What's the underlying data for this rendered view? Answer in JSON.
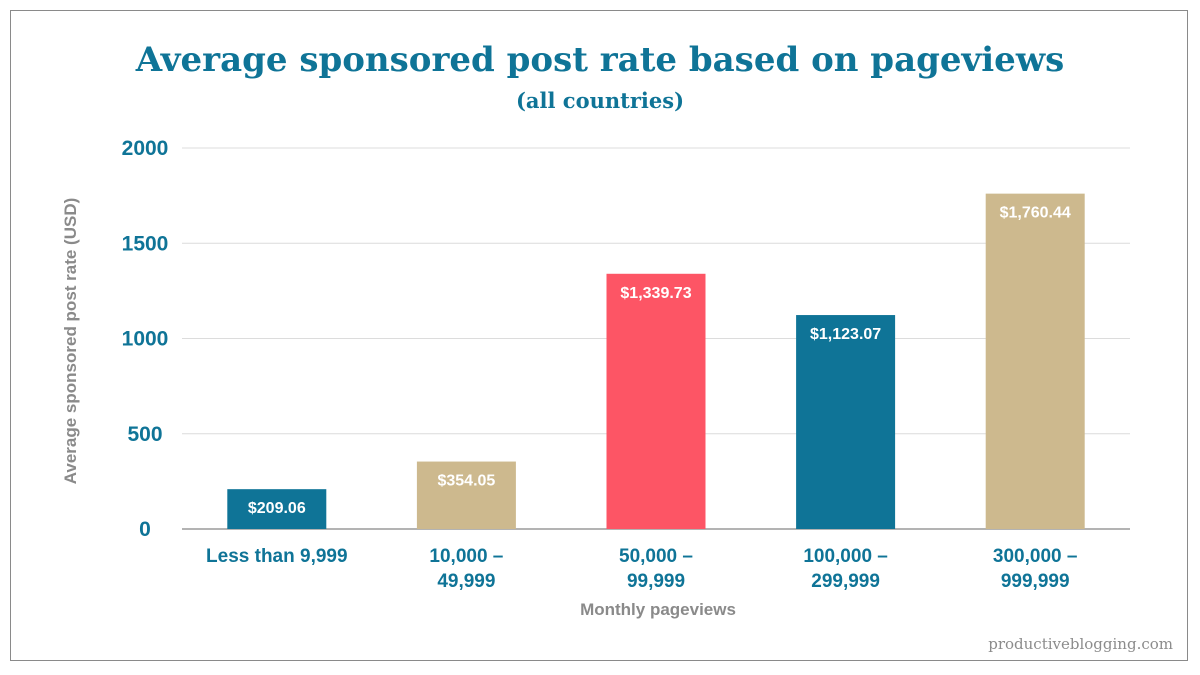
{
  "chart_data": {
    "type": "bar",
    "title": "Average sponsored post rate based on pageviews",
    "subtitle": "(all countries)",
    "xlabel": "Monthly pageviews",
    "ylabel": "Average sponsored post rate (USD)",
    "ylim": [
      0,
      2000
    ],
    "yticks": [
      "0",
      "500",
      "1000",
      "1500",
      "2000"
    ],
    "grid": true,
    "categories": [
      [
        "Less than 9,999"
      ],
      [
        "10,000 –",
        "49,999"
      ],
      [
        "50,000 –",
        "99,999"
      ],
      [
        "100,000 –",
        "299,999"
      ],
      [
        "300,000 –",
        "999,999"
      ]
    ],
    "values": [
      209.06,
      354.05,
      1339.73,
      1123.07,
      1760.44
    ],
    "value_labels": [
      "$209.06",
      "$354.05",
      "$1,339.73",
      "$1,123.07",
      "$1,760.44"
    ],
    "bar_colors": [
      "#0f7497",
      "#cdb98e",
      "#fd5565",
      "#0f7497",
      "#cdb98e"
    ]
  },
  "watermark": "productiveblogging.com"
}
